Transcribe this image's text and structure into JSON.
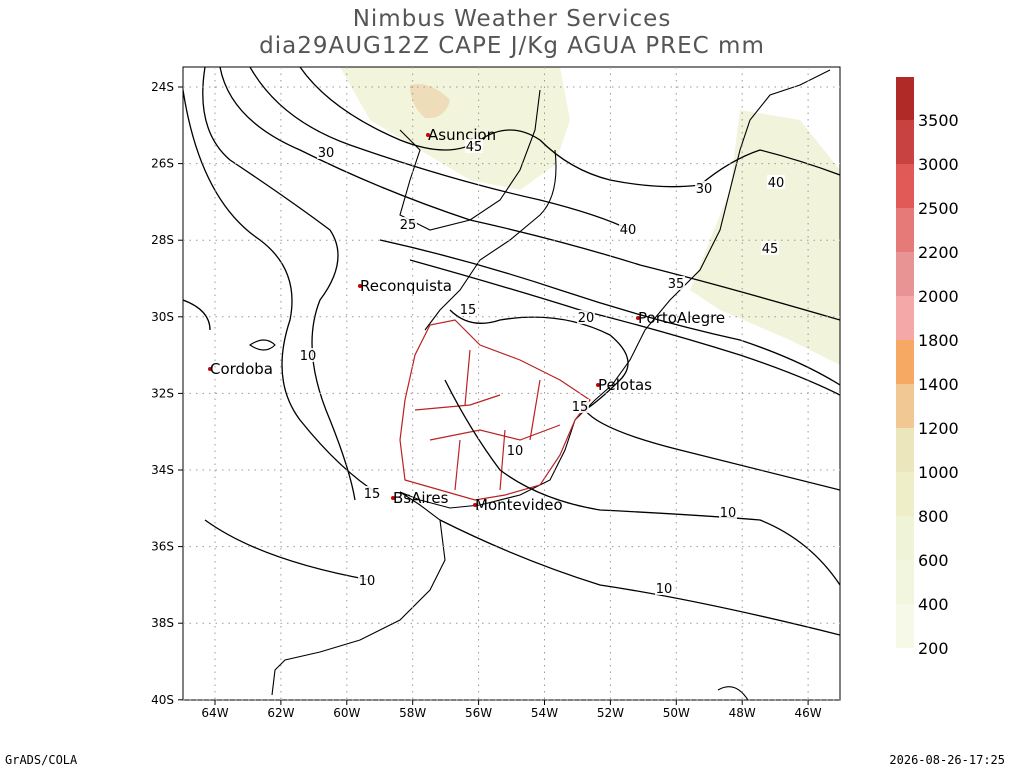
{
  "header": {
    "title": "Nimbus Weather Services",
    "subtitle": "dia29AUG12Z CAPE J/Kg AGUA PREC mm"
  },
  "map": {
    "lat_ticks": [
      "24S",
      "26S",
      "28S",
      "30S",
      "32S",
      "34S",
      "36S",
      "38S",
      "40S"
    ],
    "lon_ticks": [
      "64W",
      "62W",
      "60W",
      "58W",
      "56W",
      "54W",
      "52W",
      "50W",
      "48W",
      "46W"
    ],
    "cities": [
      "Asuncion",
      "Reconquista",
      "Cordoba",
      "PortoAlegre",
      "Pelotas",
      "BsAires",
      "Montevideo"
    ],
    "contour_labels": [
      "30",
      "45",
      "25",
      "40",
      "30",
      "40",
      "45",
      "35",
      "15",
      "20",
      "10",
      "15",
      "10",
      "15",
      "10",
      "10",
      "10"
    ]
  },
  "colorbar": {
    "levels": [
      200,
      400,
      600,
      800,
      1000,
      1200,
      1400,
      1800,
      2000,
      2200,
      2500,
      3000,
      3500
    ],
    "colors": [
      "#f6f9e8",
      "#f2f6df",
      "#eff3d8",
      "#eeeec8",
      "#ece6bc",
      "#f1c893",
      "#f6a962",
      "#f5a8a8",
      "#e99494",
      "#e67a78",
      "#e15a58",
      "#c94242",
      "#b02a28"
    ]
  },
  "footer": {
    "left": "GrADS/COLA",
    "right": "2026-08-26-17:25"
  }
}
